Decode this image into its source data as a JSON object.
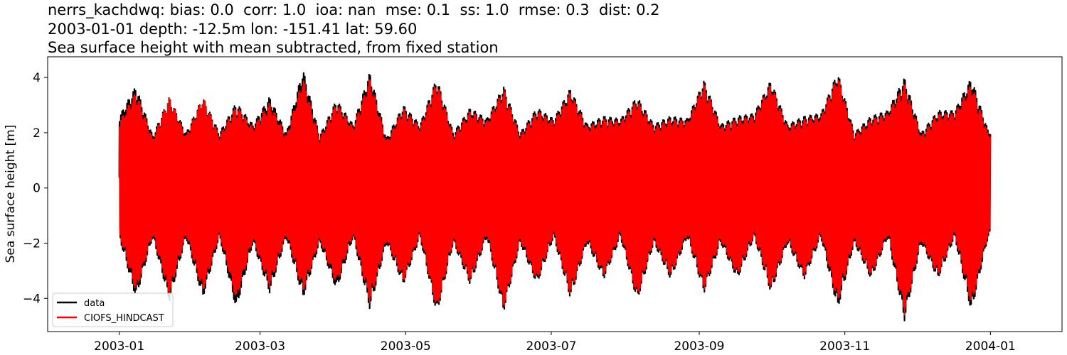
{
  "chart_data": {
    "type": "line",
    "title_lines": [
      "nerrs_kachdwq: bias: 0.0  corr: 1.0  ioa: nan  mse: 0.1  ss: 1.0  rmse: 0.3  dist: 0.2",
      "2003-01-01 depth: -12.5m lon: -151.41 lat: 59.60",
      "Sea surface height with mean subtracted, from fixed station"
    ],
    "xlabel": "",
    "ylabel": "Sea surface height [m]",
    "x_range": [
      "2003-01-01",
      "2004-01-01"
    ],
    "xlim": [
      "2002-12-02",
      "2004-01-31"
    ],
    "ylim": [
      -5.2,
      4.75
    ],
    "x_ticks": [
      "2003-01",
      "2003-03",
      "2003-05",
      "2003-07",
      "2003-09",
      "2003-11",
      "2004-01"
    ],
    "y_ticks": [
      "−4",
      "−2",
      "0",
      "2",
      "4"
    ],
    "y_tick_values": [
      -4,
      -2,
      0,
      2,
      4
    ],
    "grid": false,
    "legend_position": "lower-left",
    "series": [
      {
        "name": "data",
        "color": "#000000",
        "envelope_dates": [
          "2003-01-01",
          "2003-01-08",
          "2003-01-15",
          "2003-01-22",
          "2003-01-29",
          "2003-02-05",
          "2003-02-12",
          "2003-02-19",
          "2003-02-26",
          "2003-03-05",
          "2003-03-12",
          "2003-03-19",
          "2003-03-26",
          "2003-04-02",
          "2003-04-09",
          "2003-04-16",
          "2003-04-23",
          "2003-04-30",
          "2003-05-07",
          "2003-05-14",
          "2003-05-21",
          "2003-05-28",
          "2003-06-04",
          "2003-06-11",
          "2003-06-18",
          "2003-06-25",
          "2003-07-02",
          "2003-07-09",
          "2003-07-16",
          "2003-07-23",
          "2003-07-30",
          "2003-08-06",
          "2003-08-13",
          "2003-08-20",
          "2003-08-27",
          "2003-09-03",
          "2003-09-10",
          "2003-09-17",
          "2003-09-24",
          "2003-10-01",
          "2003-10-08",
          "2003-10-15",
          "2003-10-22",
          "2003-10-29",
          "2003-11-05",
          "2003-11-12",
          "2003-11-19",
          "2003-11-26",
          "2003-12-03",
          "2003-12-10",
          "2003-12-17",
          "2003-12-24",
          "2003-12-31"
        ],
        "envelope_max": [
          2.6,
          3.7,
          1.9,
          3.3,
          2.0,
          3.3,
          2.0,
          3.1,
          2.3,
          3.3,
          2.0,
          4.3,
          1.9,
          3.2,
          2.3,
          4.2,
          1.8,
          3.0,
          2.3,
          4.0,
          2.0,
          2.9,
          2.5,
          3.7,
          2.0,
          2.9,
          2.5,
          3.6,
          2.3,
          2.6,
          2.5,
          3.3,
          2.3,
          2.6,
          2.5,
          3.9,
          2.3,
          2.6,
          2.7,
          3.9,
          2.3,
          2.6,
          2.7,
          4.2,
          2.0,
          2.6,
          2.8,
          4.0,
          2.0,
          2.8,
          2.8,
          4.0,
          2.1
        ],
        "envelope_min": [
          -1.8,
          -4.0,
          -1.8,
          -4.1,
          -1.8,
          -4.0,
          -1.8,
          -4.4,
          -2.0,
          -3.8,
          -1.8,
          -4.0,
          -2.0,
          -3.7,
          -1.8,
          -4.4,
          -2.0,
          -3.5,
          -1.8,
          -4.6,
          -2.0,
          -3.5,
          -1.8,
          -4.5,
          -2.0,
          -3.5,
          -1.8,
          -4.0,
          -2.0,
          -3.3,
          -1.8,
          -4.1,
          -2.0,
          -3.3,
          -1.8,
          -3.8,
          -2.0,
          -3.3,
          -1.8,
          -3.8,
          -2.0,
          -3.3,
          -1.8,
          -4.4,
          -2.0,
          -3.3,
          -1.8,
          -4.8,
          -2.0,
          -3.3,
          -1.8,
          -4.5,
          -1.8
        ]
      },
      {
        "name": "CIOFS_HINDCAST",
        "color": "#ff0000",
        "envelope_dates": [
          "2003-01-01",
          "2003-01-08",
          "2003-01-15",
          "2003-01-22",
          "2003-01-29",
          "2003-02-05",
          "2003-02-12",
          "2003-02-19",
          "2003-02-26",
          "2003-03-05",
          "2003-03-12",
          "2003-03-19",
          "2003-03-26",
          "2003-04-02",
          "2003-04-09",
          "2003-04-16",
          "2003-04-23",
          "2003-04-30",
          "2003-05-07",
          "2003-05-14",
          "2003-05-21",
          "2003-05-28",
          "2003-06-04",
          "2003-06-11",
          "2003-06-18",
          "2003-06-25",
          "2003-07-02",
          "2003-07-09",
          "2003-07-16",
          "2003-07-23",
          "2003-07-30",
          "2003-08-06",
          "2003-08-13",
          "2003-08-20",
          "2003-08-27",
          "2003-09-03",
          "2003-09-10",
          "2003-09-17",
          "2003-09-24",
          "2003-10-01",
          "2003-10-08",
          "2003-10-15",
          "2003-10-22",
          "2003-10-29",
          "2003-11-05",
          "2003-11-12",
          "2003-11-19",
          "2003-11-26",
          "2003-12-03",
          "2003-12-10",
          "2003-12-17",
          "2003-12-24",
          "2003-12-31"
        ],
        "envelope_max": [
          2.4,
          3.5,
          1.8,
          3.3,
          1.9,
          3.3,
          1.9,
          3.0,
          2.2,
          3.1,
          1.9,
          4.0,
          1.8,
          3.1,
          2.2,
          4.0,
          1.7,
          2.9,
          2.2,
          3.9,
          1.9,
          2.8,
          2.4,
          3.6,
          1.9,
          2.8,
          2.4,
          3.5,
          2.2,
          2.5,
          2.4,
          3.2,
          2.2,
          2.5,
          2.4,
          3.8,
          2.2,
          2.5,
          2.6,
          3.8,
          2.2,
          2.5,
          2.6,
          4.1,
          1.9,
          2.5,
          2.7,
          3.8,
          1.9,
          2.7,
          2.7,
          3.8,
          2.0
        ],
        "envelope_min": [
          -1.7,
          -3.8,
          -1.7,
          -3.9,
          -1.7,
          -3.8,
          -1.7,
          -4.1,
          -1.9,
          -3.6,
          -1.7,
          -3.8,
          -1.9,
          -3.5,
          -1.7,
          -4.2,
          -1.9,
          -3.4,
          -1.7,
          -4.5,
          -1.9,
          -3.4,
          -1.7,
          -4.4,
          -1.9,
          -3.4,
          -1.7,
          -3.9,
          -1.9,
          -3.2,
          -1.7,
          -4.0,
          -1.9,
          -3.2,
          -1.7,
          -3.7,
          -1.9,
          -3.2,
          -1.7,
          -3.7,
          -1.9,
          -3.2,
          -1.7,
          -4.2,
          -1.9,
          -3.2,
          -1.7,
          -4.6,
          -1.9,
          -3.2,
          -1.7,
          -4.3,
          -1.7
        ]
      }
    ]
  }
}
